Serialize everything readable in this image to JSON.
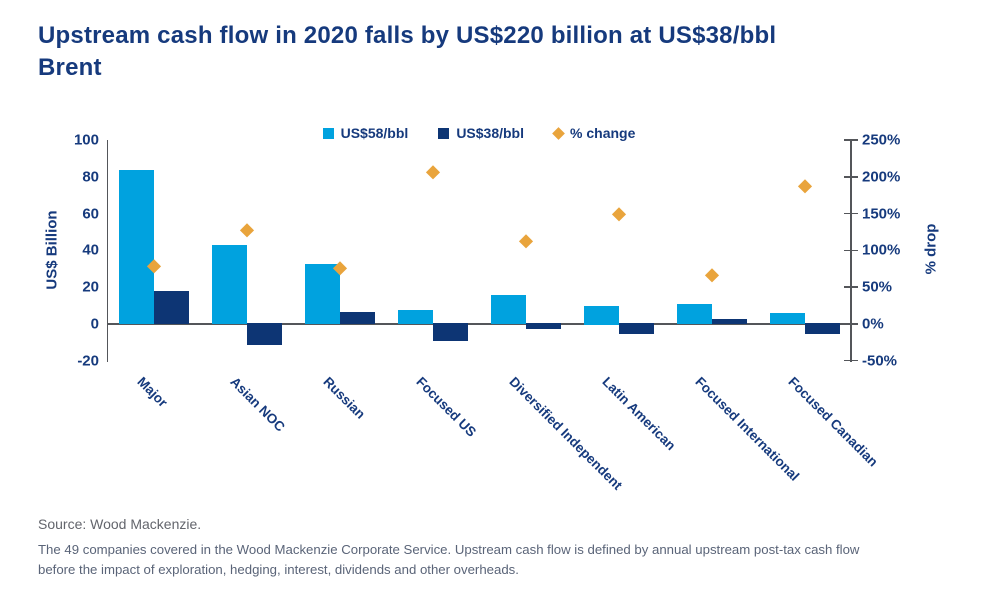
{
  "title": "Upstream cash flow in 2020 falls by US$220 billion at US$38/bbl Brent",
  "source": "Source: Wood Mackenzie.",
  "footnote": "The 49 companies covered in the Wood Mackenzie Corporate Service. Upstream cash flow is defined by annual upstream post-tax cash flow before the impact of exploration, hedging, interest, dividends and other overheads.",
  "colors": {
    "title_navy": "#163A7D",
    "bar_light_blue": "#00A2DF",
    "bar_dark_navy": "#0D3574",
    "diamond_gold": "#E9A43C",
    "axis_line_gray": "#54565A",
    "source_gray": "#63656C",
    "footnote_gray": "#5A6478"
  },
  "chart_data": {
    "type": "bar",
    "subtype": "grouped-bars-with-scatter-overlay",
    "categories": [
      "Major",
      "Asian NOC",
      "Russian",
      "Focused US",
      "Diversified Independent",
      "Latin American",
      "Focused International",
      "Focused Canadian"
    ],
    "series": [
      {
        "name": "US$58/bbl",
        "type": "bar",
        "color_key": "bar_light_blue",
        "axis": "left",
        "values": [
          84,
          43,
          33,
          8,
          16,
          10,
          11,
          6
        ]
      },
      {
        "name": "US$38/bbl",
        "type": "bar",
        "color_key": "bar_dark_navy",
        "axis": "left",
        "values": [
          18,
          -12,
          7,
          -10,
          -3,
          -6,
          3,
          -6
        ]
      },
      {
        "name": "% change",
        "type": "scatter",
        "marker": "diamond",
        "color_key": "diamond_gold",
        "axis": "right",
        "values": [
          78,
          128,
          76,
          207,
          113,
          150,
          66,
          188
        ]
      }
    ],
    "left_axis": {
      "label": "US$ Billion",
      "ticks": [
        100,
        80,
        60,
        40,
        20,
        0,
        -20
      ],
      "min": -20,
      "max": 100
    },
    "right_axis": {
      "label": "% drop",
      "ticks": [
        "250%",
        "200%",
        "150%",
        "100%",
        "50%",
        "0%",
        "-50%"
      ],
      "tick_values": [
        250,
        200,
        150,
        100,
        50,
        0,
        -50
      ],
      "min": -50,
      "max": 250
    },
    "legend_position": "top",
    "grid": false
  }
}
